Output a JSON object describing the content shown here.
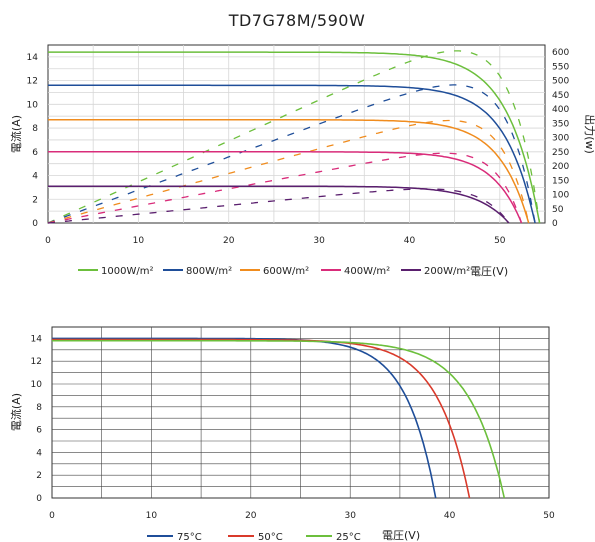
{
  "title": "TD7G78M/590W",
  "chart_data": [
    {
      "type": "line",
      "title": "TD7G78M/590W",
      "xlabel": "電圧(V)",
      "ylabel": "電流(A)",
      "y2label": "出力(w)",
      "xlim": [
        0,
        55
      ],
      "ylim": [
        0,
        15
      ],
      "y2lim": [
        0,
        625
      ],
      "xticks": [
        "0",
        "10",
        "20",
        "30",
        "40",
        "50"
      ],
      "yticks": [
        "0",
        "2",
        "4",
        "6",
        "8",
        "10",
        "12",
        "14"
      ],
      "y2ticks": [
        "0",
        "50",
        "100",
        "150",
        "200",
        "250",
        "300",
        "350",
        "400",
        "450",
        "500",
        "550",
        "600"
      ],
      "grid": true,
      "legend": "bottom",
      "series": [
        {
          "name": "1000W/m²",
          "color": "#6cbf3c",
          "isc": 14.4,
          "voc": 54.4,
          "vmp": 43.7,
          "pmax": 605
        },
        {
          "name": "800W/m²",
          "color": "#1f4e99",
          "isc": 11.6,
          "voc": 53.9,
          "vmp": 43.5,
          "pmax": 485
        },
        {
          "name": "600W/m²",
          "color": "#f08c1e",
          "isc": 8.7,
          "voc": 53.2,
          "vmp": 43.0,
          "pmax": 360
        },
        {
          "name": "400W/m²",
          "color": "#d92c7a",
          "isc": 6.0,
          "voc": 52.4,
          "vmp": 42.5,
          "pmax": 245
        },
        {
          "name": "200W/m²",
          "color": "#5a1f6e",
          "isc": 3.1,
          "voc": 51.0,
          "vmp": 41.5,
          "pmax": 122
        }
      ]
    },
    {
      "type": "line",
      "xlabel": "電圧(V)",
      "ylabel": "電流(A)",
      "xlim": [
        0,
        50
      ],
      "ylim": [
        0,
        15
      ],
      "xticks": [
        "0",
        "10",
        "20",
        "30",
        "40",
        "50"
      ],
      "yticks": [
        "0",
        "2",
        "4",
        "6",
        "8",
        "10",
        "12",
        "14"
      ],
      "grid": true,
      "legend": "bottom",
      "series": [
        {
          "name": "75°C",
          "color": "#1f4e99",
          "isc": 14.0,
          "voc": 38.6
        },
        {
          "name": "50°C",
          "color": "#d93a2b",
          "isc": 13.9,
          "voc": 42.0
        },
        {
          "name": "25°C",
          "color": "#6cbf3c",
          "isc": 13.8,
          "voc": 45.5
        }
      ]
    }
  ]
}
